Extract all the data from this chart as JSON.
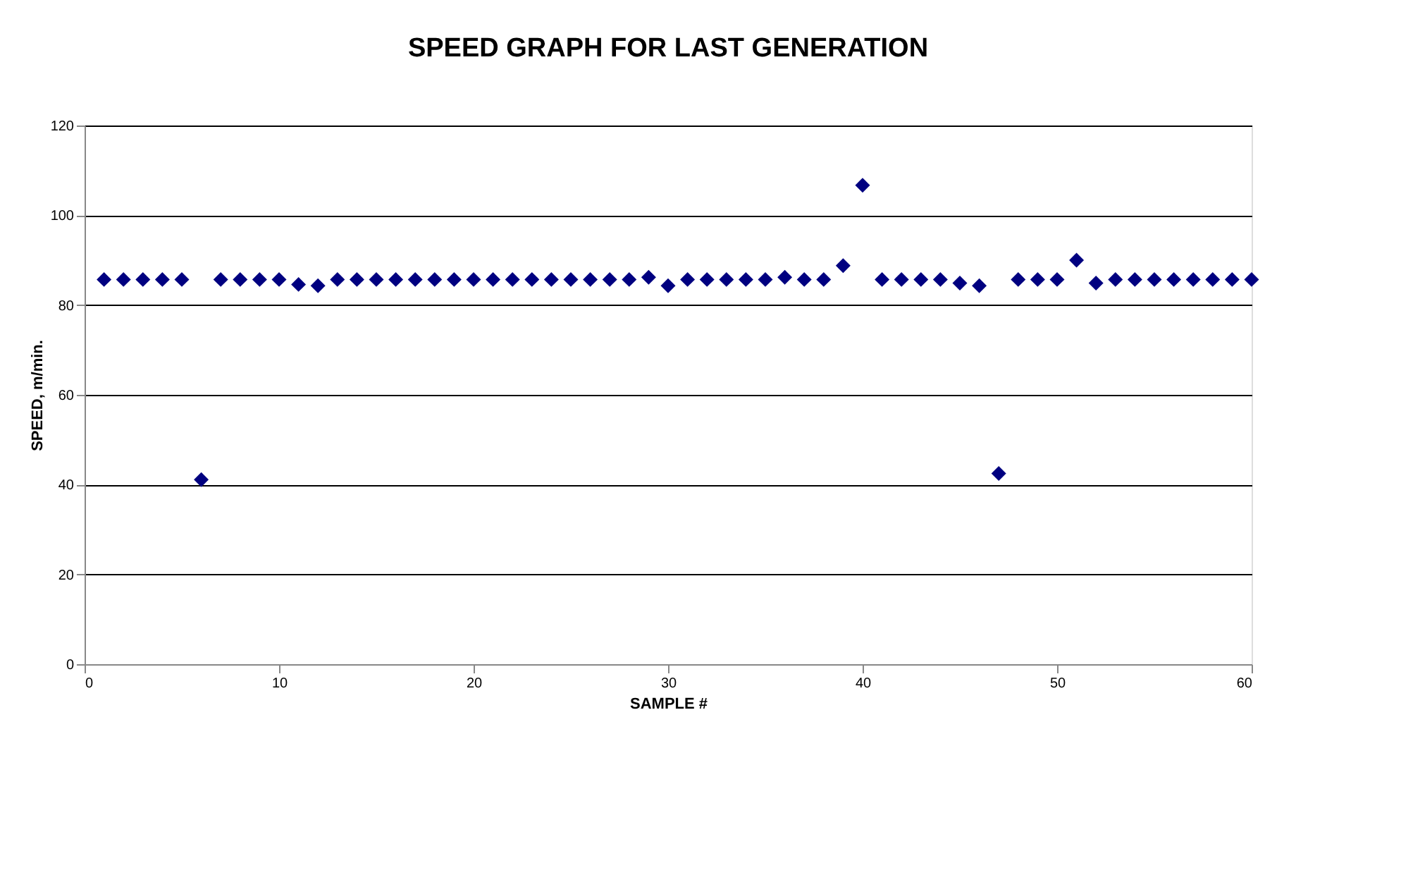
{
  "chart_data": {
    "type": "scatter",
    "title": "SPEED GRAPH FOR LAST GENERATION",
    "xlabel": "SAMPLE #",
    "ylabel": "SPEED, m/min.",
    "x": [
      1,
      2,
      3,
      4,
      5,
      6,
      7,
      8,
      9,
      10,
      11,
      12,
      13,
      14,
      15,
      16,
      17,
      18,
      19,
      20,
      21,
      22,
      23,
      24,
      25,
      26,
      27,
      28,
      29,
      30,
      31,
      32,
      33,
      34,
      35,
      36,
      37,
      38,
      39,
      40,
      41,
      42,
      43,
      44,
      45,
      46,
      47,
      48,
      49,
      50,
      51,
      52,
      53,
      54,
      55,
      56,
      57,
      58,
      59,
      60
    ],
    "series": [
      {
        "color": "#000080",
        "values": [
          85.7,
          85.7,
          85.7,
          85.7,
          85.7,
          41.1,
          85.7,
          85.7,
          85.7,
          85.7,
          84.6,
          84.3,
          85.7,
          85.7,
          85.7,
          85.7,
          85.7,
          85.7,
          85.7,
          85.7,
          85.7,
          85.7,
          85.7,
          85.7,
          85.7,
          85.7,
          85.7,
          85.7,
          86.2,
          84.3,
          85.7,
          85.7,
          85.7,
          85.7,
          85.7,
          86.2,
          85.7,
          85.7,
          88.8,
          106.7,
          85.7,
          85.7,
          85.7,
          85.7,
          84.9,
          84.3,
          42.5,
          85.7,
          85.7,
          85.7,
          90.0,
          84.9,
          85.7,
          85.7,
          85.7,
          85.7,
          85.7,
          85.7,
          85.7,
          85.7
        ]
      }
    ],
    "xlim": [
      0,
      60
    ],
    "xticks": [
      0,
      10,
      20,
      30,
      40,
      50,
      60
    ],
    "ylim": [
      0,
      120
    ],
    "yticks": [
      0,
      20,
      40,
      60,
      80,
      100,
      120
    ],
    "grid": "y",
    "marker": "diamond",
    "legend": false
  }
}
